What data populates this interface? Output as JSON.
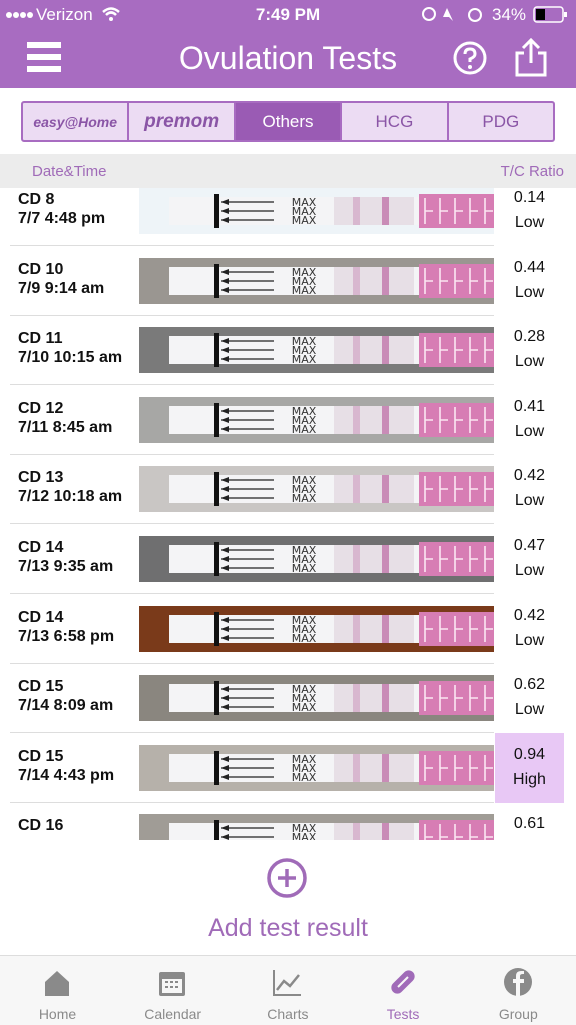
{
  "status": {
    "carrier": "Verizon",
    "time": "7:49 PM",
    "battery": "34%"
  },
  "header": {
    "title": "Ovulation Tests"
  },
  "tabs": [
    "easy@Home",
    "premom",
    "Others",
    "HCG",
    "PDG"
  ],
  "selected_tab": 2,
  "columns": {
    "date": "Date&Time",
    "ratio": "T/C Ratio"
  },
  "strip_label": "MAX",
  "rows": [
    {
      "cycle_day": "CD 8",
      "datetime": "7/7 4:48 pm",
      "ratio": 0.14,
      "level": "Low"
    },
    {
      "cycle_day": "CD 10",
      "datetime": "7/9 9:14 am",
      "ratio": 0.44,
      "level": "Low"
    },
    {
      "cycle_day": "CD 11",
      "datetime": "7/10 10:15 am",
      "ratio": 0.28,
      "level": "Low"
    },
    {
      "cycle_day": "CD 12",
      "datetime": "7/11 8:45 am",
      "ratio": 0.41,
      "level": "Low"
    },
    {
      "cycle_day": "CD 13",
      "datetime": "7/12 10:18 am",
      "ratio": 0.42,
      "level": "Low"
    },
    {
      "cycle_day": "CD 14",
      "datetime": "7/13 9:35 am",
      "ratio": 0.47,
      "level": "Low"
    },
    {
      "cycle_day": "CD 14",
      "datetime": "7/13 6:58 pm",
      "ratio": 0.42,
      "level": "Low"
    },
    {
      "cycle_day": "CD 15",
      "datetime": "7/14 8:09 am",
      "ratio": 0.62,
      "level": "Low"
    },
    {
      "cycle_day": "CD 15",
      "datetime": "7/14 4:43 pm",
      "ratio": 0.94,
      "level": "High",
      "highlight": true
    },
    {
      "cycle_day": "CD 16",
      "ratio": 0.61
    }
  ],
  "add_button": "Add test result",
  "nav": [
    "Home",
    "Calendar",
    "Charts",
    "Tests",
    "Group"
  ],
  "active_nav": 3
}
